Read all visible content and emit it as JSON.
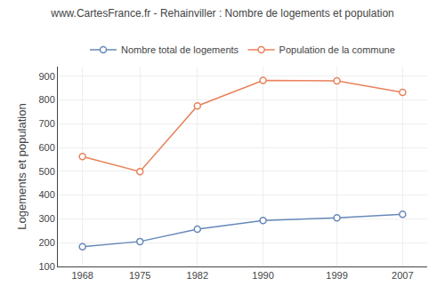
{
  "chart_data": {
    "type": "line",
    "title": "www.CartesFrance.fr - Rehainviller : Nombre de logements et population",
    "ylabel": "Logements et population",
    "x": [
      1968,
      1975,
      1982,
      1990,
      1999,
      2007
    ],
    "series": [
      {
        "name": "Nombre total de logements",
        "color": "#6688bb",
        "marker": "circle",
        "line_style": "solid",
        "values": [
          183,
          205,
          257,
          293,
          304,
          319
        ]
      },
      {
        "name": "Population de la commune",
        "color": "#e8825a",
        "marker": "circle",
        "line_style": "solid",
        "values": [
          562,
          499,
          775,
          882,
          880,
          832
        ]
      }
    ],
    "xlim": [
      1965,
      2010
    ],
    "xticks": [
      1968,
      1975,
      1982,
      1990,
      1999,
      2007
    ],
    "ylim": [
      100,
      940
    ],
    "yticks": [
      100,
      200,
      300,
      400,
      500,
      600,
      700,
      800,
      900
    ],
    "grid": true,
    "legend": "top"
  }
}
